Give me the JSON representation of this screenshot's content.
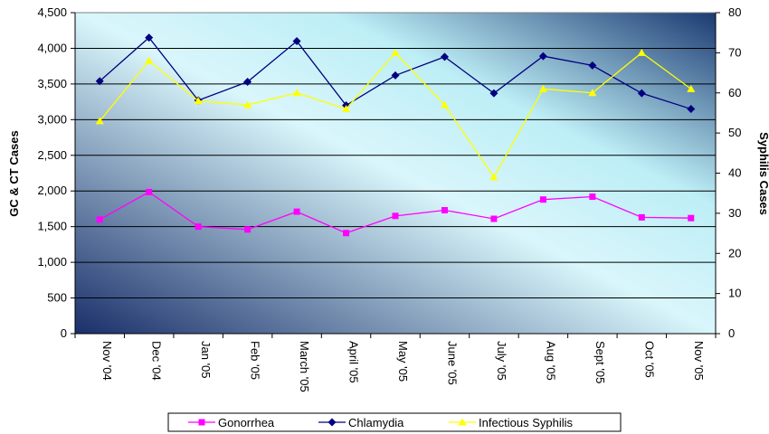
{
  "chart_data": {
    "type": "line",
    "title": "",
    "categories": [
      "Nov '04",
      "Dec '04",
      "Jan '05",
      "Feb '05",
      "March '05",
      "April '05",
      "May '05",
      "June '05",
      "July '05",
      "Aug '05",
      "Sept '05",
      "Oct '05",
      "Nov '05"
    ],
    "ylabel_left": "GC & CT Cases",
    "ylabel_right": "Syphilis Cases",
    "ylim_left": [
      0,
      4500
    ],
    "yticks_left": [
      "0",
      "500",
      "1,000",
      "1,500",
      "2,000",
      "2,500",
      "3,000",
      "3,500",
      "4,000",
      "4,500"
    ],
    "ylim_right": [
      0,
      80
    ],
    "yticks_right": [
      "0",
      "10",
      "20",
      "30",
      "40",
      "50",
      "60",
      "70",
      "80"
    ],
    "grid": true,
    "legend_position": "bottom",
    "series": [
      {
        "name": "Gonorrhea",
        "axis": "left",
        "color": "#ff00ff",
        "marker": "square",
        "values": [
          1600,
          1985,
          1500,
          1460,
          1710,
          1410,
          1650,
          1730,
          1610,
          1880,
          1920,
          1630,
          1620
        ]
      },
      {
        "name": "Chlamydia",
        "axis": "left",
        "color": "#000080",
        "marker": "diamond",
        "values": [
          3540,
          4150,
          3270,
          3530,
          4100,
          3200,
          3620,
          3880,
          3370,
          3890,
          3760,
          3370,
          3150
        ]
      },
      {
        "name": "Infectious Syphilis",
        "axis": "right",
        "color": "#ffff00",
        "marker": "triangle",
        "values": [
          53,
          68,
          58,
          57,
          60,
          56,
          70,
          57,
          39,
          61,
          60,
          70,
          61
        ]
      }
    ]
  }
}
